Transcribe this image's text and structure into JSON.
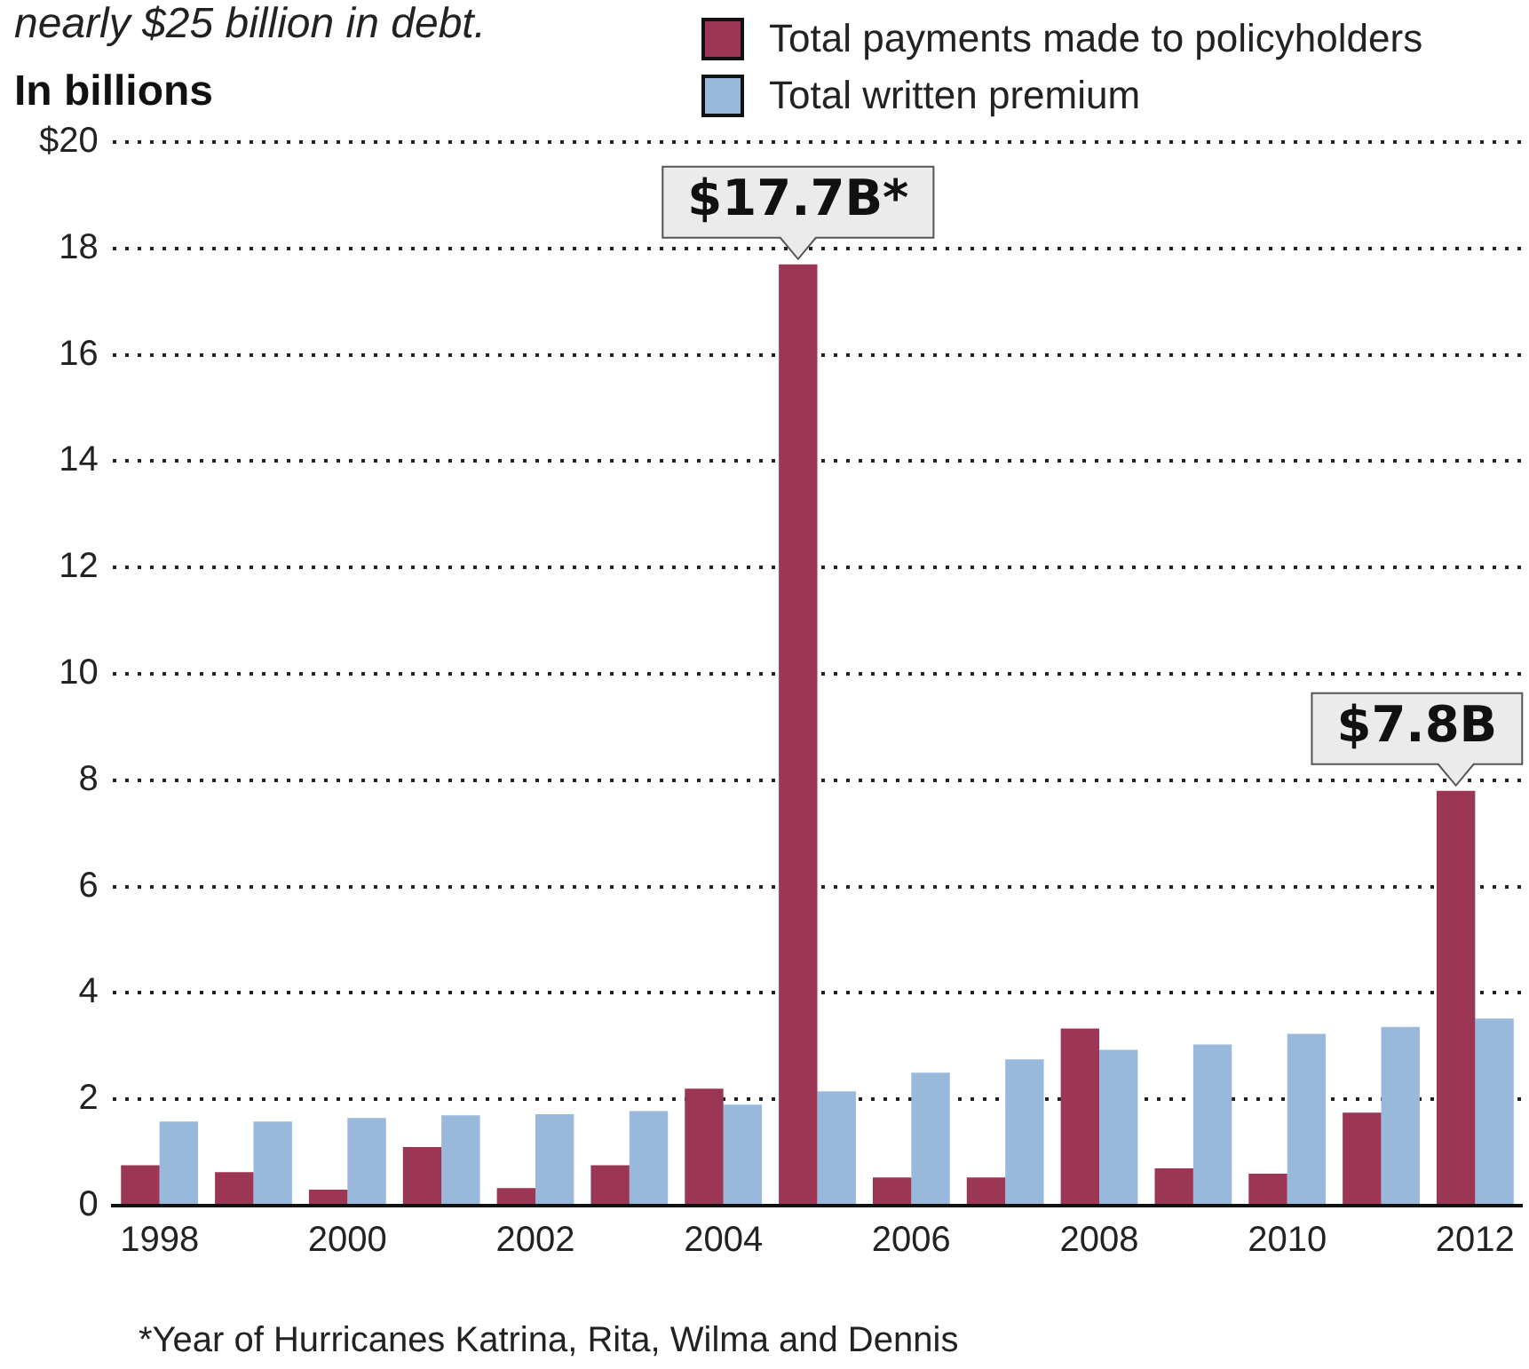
{
  "chart_data": {
    "type": "bar",
    "subtitle": "nearly $25 billion in debt.",
    "ylabel": "In billions",
    "categories": [
      "1998",
      null,
      "2000",
      null,
      "2002",
      null,
      "2004",
      null,
      "2006",
      null,
      "2008",
      null,
      "2010",
      null,
      "2012"
    ],
    "series": [
      {
        "name": "Total payments made to policyholders",
        "color": "#9b3755",
        "values": [
          0.76,
          0.63,
          0.3,
          1.1,
          0.33,
          0.76,
          2.2,
          17.7,
          0.53,
          0.53,
          3.33,
          0.7,
          0.6,
          1.75,
          7.8
        ],
        "value_labels": [
          null,
          null,
          null,
          null,
          null,
          null,
          null,
          "$17.7B*",
          null,
          null,
          null,
          null,
          null,
          null,
          "$7.8B"
        ]
      },
      {
        "name": "Total written premium",
        "color": "#98b8dc",
        "values": [
          1.58,
          1.58,
          1.65,
          1.7,
          1.72,
          1.78,
          1.9,
          2.15,
          2.5,
          2.75,
          2.93,
          3.03,
          3.23,
          3.36,
          3.52
        ]
      }
    ],
    "ylim": [
      0,
      20
    ],
    "yticks": [
      0,
      2,
      4,
      6,
      8,
      10,
      12,
      14,
      16,
      18,
      {
        "value": 20,
        "label": "$20"
      }
    ],
    "grid": "y",
    "legend": "top right",
    "annotations": [
      "*Year of Hurricanes Katrina, Rita, Wilma and Dennis"
    ]
  }
}
